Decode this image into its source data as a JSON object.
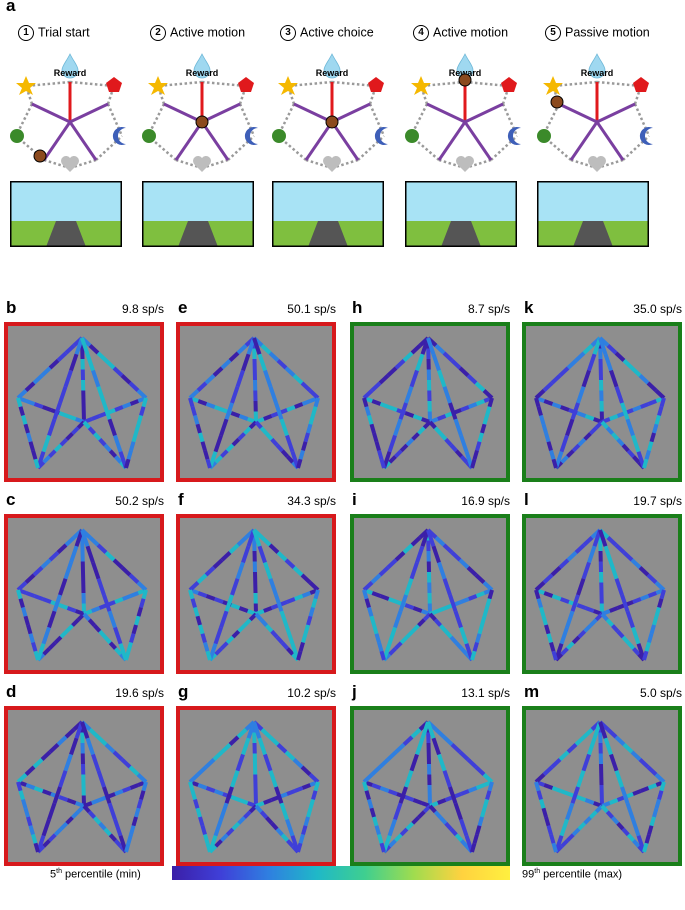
{
  "panel_a": {
    "letter": "a",
    "reward_label": "Reward",
    "steps": [
      {
        "num": "1",
        "title": "Trial start"
      },
      {
        "num": "2",
        "title": "Active motion"
      },
      {
        "num": "3",
        "title": "Active choice"
      },
      {
        "num": "4",
        "title": "Active motion"
      },
      {
        "num": "5",
        "title": "Passive motion"
      }
    ]
  },
  "panels": [
    {
      "letter": "b",
      "rate": "9.8 sp/s",
      "frame_color": "#d7191c"
    },
    {
      "letter": "e",
      "rate": "50.1 sp/s",
      "frame_color": "#d7191c"
    },
    {
      "letter": "h",
      "rate": "8.7 sp/s",
      "frame_color": "#1a7f1a"
    },
    {
      "letter": "k",
      "rate": "35.0 sp/s",
      "frame_color": "#1a7f1a"
    },
    {
      "letter": "c",
      "rate": "50.2 sp/s",
      "frame_color": "#d7191c"
    },
    {
      "letter": "f",
      "rate": "34.3 sp/s",
      "frame_color": "#d7191c"
    },
    {
      "letter": "i",
      "rate": "16.9 sp/s",
      "frame_color": "#1a7f1a"
    },
    {
      "letter": "l",
      "rate": "19.7 sp/s",
      "frame_color": "#1a7f1a"
    },
    {
      "letter": "d",
      "rate": "19.6 sp/s",
      "frame_color": "#d7191c"
    },
    {
      "letter": "g",
      "rate": "10.2 sp/s",
      "frame_color": "#d7191c"
    },
    {
      "letter": "j",
      "rate": "13.1 sp/s",
      "frame_color": "#1a7f1a"
    },
    {
      "letter": "m",
      "rate": "5.0 sp/s",
      "frame_color": "#1a7f1a"
    }
  ],
  "colorbar": {
    "min_label_num": "5",
    "min_label_sup": "th",
    "min_label_rest": " percentile (min)",
    "max_label_num": "99",
    "max_label_sup": "th",
    "max_label_rest": " percentile (max)",
    "colormap": [
      "#3b1fa8",
      "#3f3fd8",
      "#2f7fe0",
      "#1fb8c8",
      "#3fcf8f",
      "#9fdc4f",
      "#ffd23f",
      "#fff03f"
    ]
  }
}
